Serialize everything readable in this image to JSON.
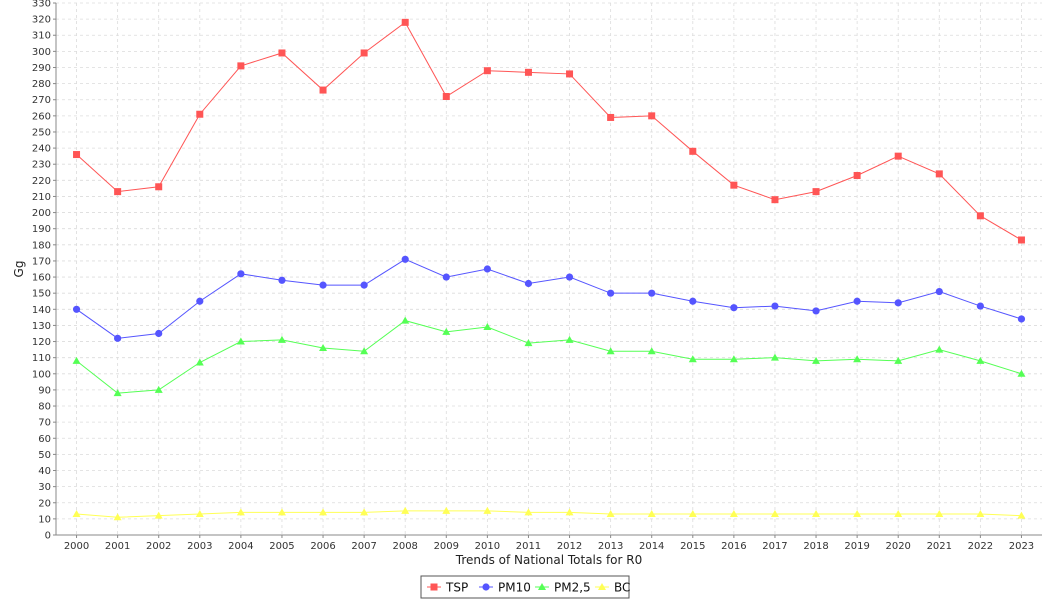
{
  "chart_data": {
    "type": "line",
    "title": "",
    "xlabel": "Trends of National Totals for R0",
    "ylabel": "Gg",
    "ylim": [
      0,
      330
    ],
    "ytick_step": 10,
    "grid": true,
    "legend_position": "bottom-center",
    "categories": [
      "2000",
      "2001",
      "2002",
      "2003",
      "2004",
      "2005",
      "2006",
      "2007",
      "2008",
      "2009",
      "2010",
      "2011",
      "2012",
      "2013",
      "2014",
      "2015",
      "2016",
      "2017",
      "2018",
      "2019",
      "2020",
      "2021",
      "2022",
      "2023"
    ],
    "series": [
      {
        "name": "TSP",
        "color": "#ff5555",
        "marker": "square",
        "values": [
          236,
          213,
          216,
          261,
          291,
          299,
          276,
          299,
          318,
          272,
          288,
          287,
          286,
          259,
          260,
          238,
          217,
          208,
          213,
          223,
          235,
          224,
          198,
          183
        ]
      },
      {
        "name": "PM10",
        "color": "#5555ff",
        "marker": "circle",
        "values": [
          140,
          122,
          125,
          145,
          162,
          158,
          155,
          155,
          171,
          160,
          165,
          156,
          160,
          150,
          150,
          145,
          141,
          142,
          139,
          145,
          144,
          151,
          142,
          134
        ]
      },
      {
        "name": "PM2,5",
        "color": "#55ff55",
        "marker": "triangle",
        "values": [
          108,
          88,
          90,
          107,
          120,
          121,
          116,
          114,
          133,
          126,
          129,
          119,
          121,
          114,
          114,
          109,
          109,
          110,
          108,
          109,
          108,
          115,
          108,
          100
        ]
      },
      {
        "name": "BC",
        "color": "#ffff55",
        "marker": "triangle",
        "values": [
          13,
          11,
          12,
          13,
          14,
          14,
          14,
          14,
          15,
          15,
          15,
          14,
          14,
          13,
          13,
          13,
          13,
          13,
          13,
          13,
          13,
          13,
          13,
          12
        ]
      }
    ]
  }
}
